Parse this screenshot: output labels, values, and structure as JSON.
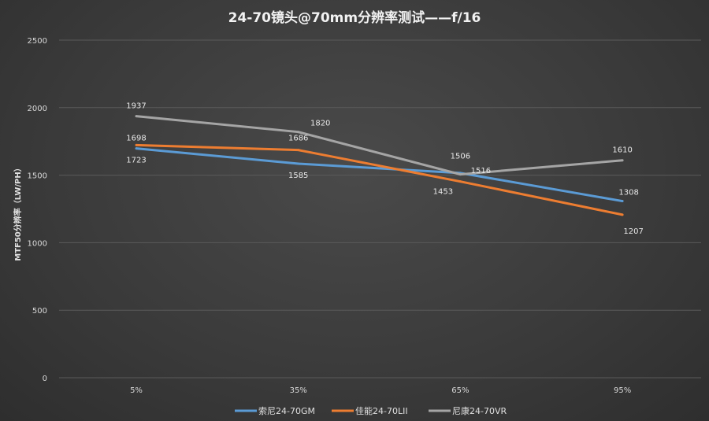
{
  "chart_data": {
    "type": "line",
    "title": "24-70镜头@70mm分辨率测试——f/16",
    "ylabel": "MTF50分辨率（LW/PH）",
    "xlabel": "",
    "categories": [
      "5%",
      "35%",
      "65%",
      "95%"
    ],
    "ylim": [
      0,
      2500
    ],
    "yticks": [
      "0",
      "500",
      "1000",
      "1500",
      "2000",
      "2500"
    ],
    "grid": true,
    "legend": "bottom",
    "series": [
      {
        "name": "索尼24-70GM",
        "color": "#5b9bd5",
        "values": [
          1698,
          1585,
          1516,
          1308
        ]
      },
      {
        "name": "佳能24-70LII",
        "color": "#ed7d31",
        "values": [
          1723,
          1686,
          1453,
          1207
        ]
      },
      {
        "name": "尼康24-70VR",
        "color": "#a5a5a5",
        "values": [
          1937,
          1820,
          1506,
          1610
        ]
      }
    ]
  }
}
